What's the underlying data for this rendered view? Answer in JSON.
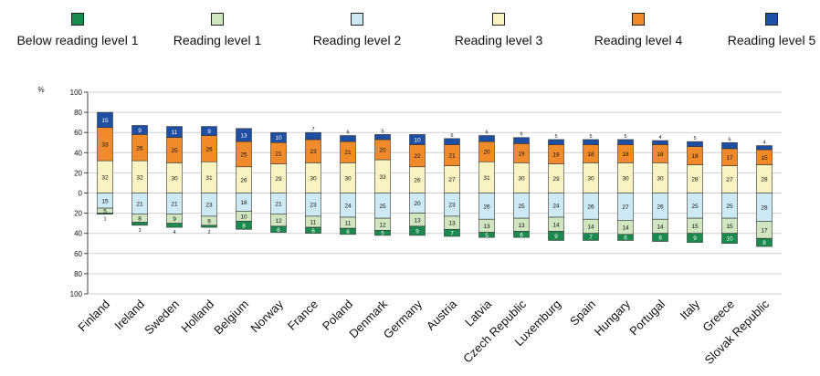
{
  "legend": {
    "items": [
      {
        "label": "Below reading level 1",
        "color": "#1a8a4f"
      },
      {
        "label": "Reading level 1",
        "color": "#cfe6c0"
      },
      {
        "label": "Reading level 2",
        "color": "#cdeaf4"
      },
      {
        "label": "Reading level 3",
        "color": "#f8f3c0"
      },
      {
        "label": "Reading level 4",
        "color": "#f08a2a"
      },
      {
        "label": "Reading level 5",
        "color": "#1f4fa3"
      }
    ]
  },
  "chart_data": {
    "type": "bar",
    "stacked": "diverging",
    "ylabel": "%",
    "yticks": [
      "100",
      "80",
      "60",
      "40",
      "20",
      "0",
      "20",
      "40",
      "60",
      "80",
      "100"
    ],
    "ylim": [
      -100,
      100
    ],
    "grid": true,
    "categories": [
      "Finland",
      "Ireland",
      "Sweden",
      "Holland",
      "Belgium",
      "Norway",
      "France",
      "Poland",
      "Denmark",
      "Germany",
      "Austria",
      "Latvia",
      "Czech Republic",
      "Luxemburg",
      "Spain",
      "Hungary",
      "Portugal",
      "Italy",
      "Greece",
      "Slovak Republic"
    ],
    "series": [
      {
        "name": "Below reading level 1",
        "direction": "down",
        "color": "#1a8a4f",
        "values": [
          1,
          3,
          4,
          2,
          8,
          6,
          6,
          6,
          5,
          9,
          7,
          5,
          6,
          9,
          7,
          6,
          8,
          9,
          10,
          8
        ]
      },
      {
        "name": "Reading level 1",
        "direction": "down",
        "color": "#cfe6c0",
        "values": [
          5,
          8,
          9,
          9,
          10,
          12,
          11,
          11,
          12,
          13,
          13,
          13,
          13,
          14,
          14,
          14,
          14,
          15,
          15,
          17
        ]
      },
      {
        "name": "Reading level 2",
        "direction": "down",
        "color": "#cdeaf4",
        "values": [
          15,
          21,
          21,
          23,
          18,
          21,
          23,
          24,
          25,
          20,
          23,
          26,
          25,
          24,
          26,
          27,
          26,
          25,
          25,
          28
        ]
      },
      {
        "name": "Reading level 3",
        "direction": "up",
        "color": "#f8f3c0",
        "values": [
          32,
          32,
          30,
          31,
          26,
          29,
          30,
          30,
          33,
          26,
          27,
          31,
          30,
          29,
          30,
          30,
          30,
          28,
          27,
          28
        ]
      },
      {
        "name": "Reading level 4",
        "direction": "up",
        "color": "#f08a2a",
        "values": [
          33,
          26,
          25,
          26,
          25,
          21,
          23,
          21,
          20,
          22,
          21,
          20,
          19,
          19,
          18,
          18,
          18,
          18,
          17,
          15
        ]
      },
      {
        "name": "Reading level 5",
        "direction": "up",
        "color": "#1f4fa3",
        "values": [
          15,
          9,
          11,
          9,
          13,
          10,
          7,
          6,
          5,
          10,
          6,
          6,
          6,
          5,
          5,
          5,
          4,
          5,
          6,
          4
        ]
      }
    ]
  }
}
